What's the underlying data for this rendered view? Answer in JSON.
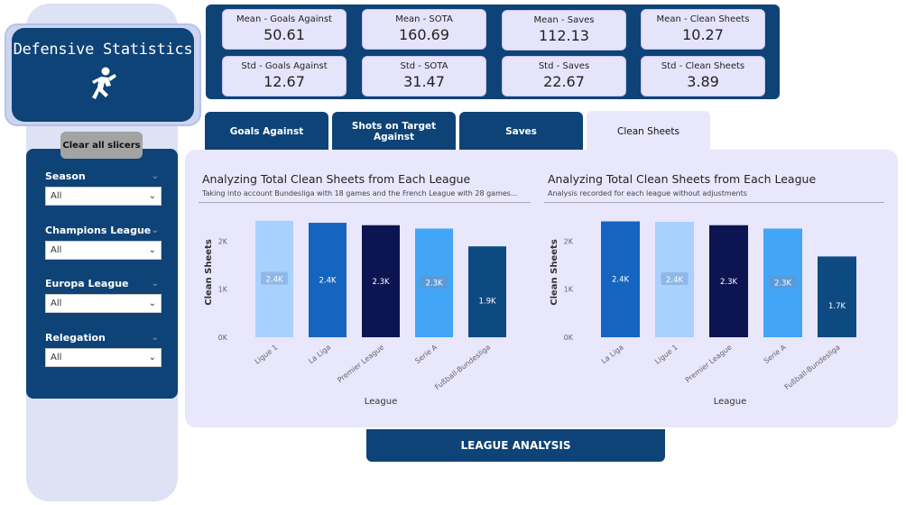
{
  "sidebar": {
    "title": "Defensive Statistics",
    "clear_button": "Clear all slicers",
    "filters": [
      {
        "label": "Season",
        "value": "All"
      },
      {
        "label": "Champions League",
        "value": "All"
      },
      {
        "label": "Europa League",
        "value": "All"
      },
      {
        "label": "Relegation",
        "value": "All"
      }
    ]
  },
  "kpis": [
    {
      "label": "Mean - Goals Against",
      "value": "50.61"
    },
    {
      "label": "Mean - SOTA",
      "value": "160.69"
    },
    {
      "label": "Mean - Saves",
      "value": "112.13"
    },
    {
      "label": "Mean - Clean Sheets",
      "value": "10.27"
    },
    {
      "label": "Std - Goals Against",
      "value": "12.67"
    },
    {
      "label": "Std - SOTA",
      "value": "31.47"
    },
    {
      "label": "Std - Saves",
      "value": "22.67"
    },
    {
      "label": "Std - Clean Sheets",
      "value": "3.89"
    }
  ],
  "tabs": [
    {
      "label": "Goals Against",
      "active": false
    },
    {
      "label": "Shots on Target Against",
      "active": false
    },
    {
      "label": "Saves",
      "active": false
    },
    {
      "label": "Clean Sheets",
      "active": true
    }
  ],
  "footer_button": "LEAGUE ANALYSIS",
  "chart_data": [
    {
      "type": "bar",
      "title": "Analyzing Total Clean Sheets from Each League",
      "subtitle": "Taking into account Bundesliga with 18 games and the French League with 28 games...",
      "xlabel": "League",
      "ylabel": "Clean Sheets",
      "yticks": [
        "0K",
        "1K",
        "2K"
      ],
      "ylim": [
        0,
        2700
      ],
      "categories": [
        "Ligue 1",
        "La Liga",
        "Premier League",
        "Serie A",
        "Fußball-Bundesliga"
      ],
      "values": [
        2420,
        2380,
        2330,
        2260,
        1890
      ],
      "data_labels": [
        "2.4K",
        "2.4K",
        "2.3K",
        "2.3K",
        "1.9K"
      ],
      "colors": [
        "#a8d1ff",
        "#1565c0",
        "#0c1452",
        "#42a5f5",
        "#0e4a82"
      ],
      "grid": false
    },
    {
      "type": "bar",
      "title": "Analyzing Total Clean Sheets from Each League",
      "subtitle": "Analysis recorded for each league without adjustments",
      "xlabel": "League",
      "ylabel": "Clean Sheets",
      "yticks": [
        "0K",
        "1K",
        "2K"
      ],
      "ylim": [
        0,
        2700
      ],
      "categories": [
        "La Liga",
        "Ligue 1",
        "Premier League",
        "Serie A",
        "Fußball-Bundesliga"
      ],
      "values": [
        2410,
        2400,
        2330,
        2260,
        1680
      ],
      "data_labels": [
        "2.4K",
        "2.4K",
        "2.3K",
        "2.3K",
        "1.7K"
      ],
      "colors": [
        "#1565c0",
        "#a8d1ff",
        "#0c1452",
        "#42a5f5",
        "#0e4a82"
      ],
      "grid": false
    }
  ]
}
